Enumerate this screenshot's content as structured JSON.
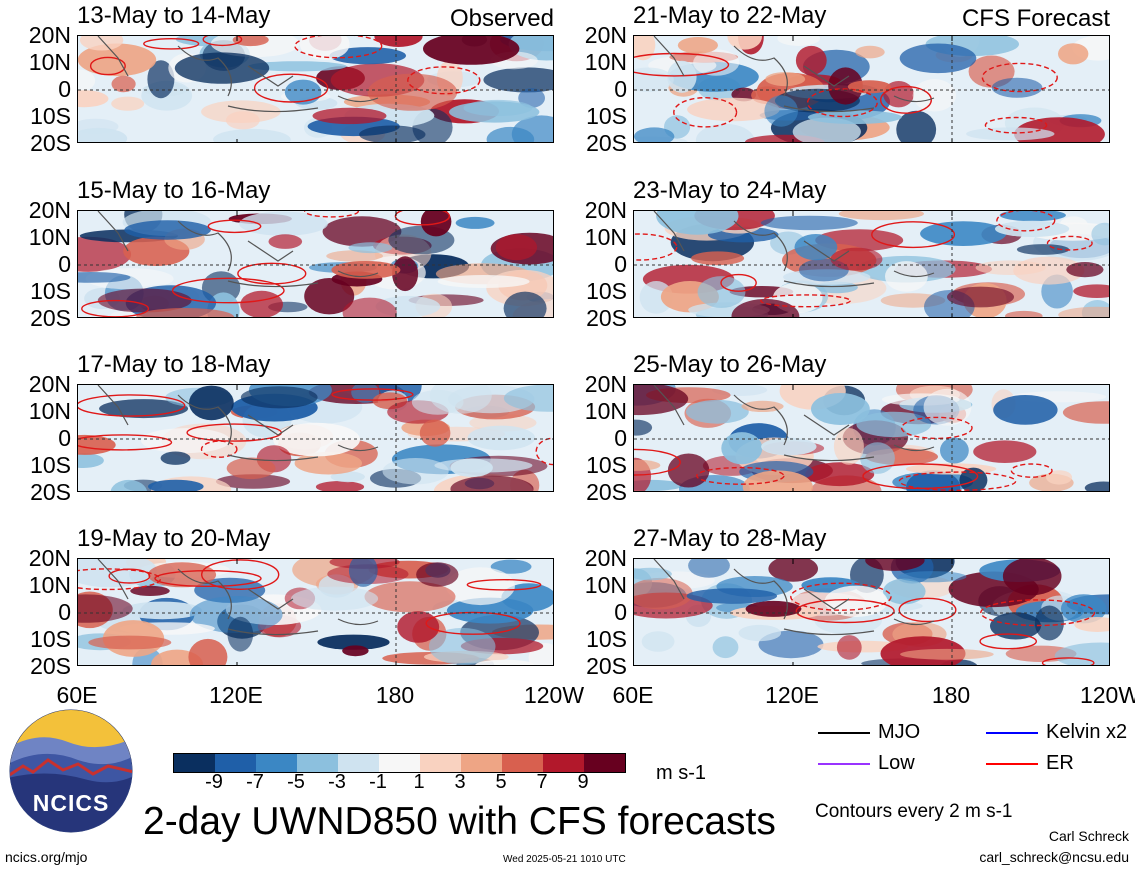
{
  "chart_data": {
    "type": "heatmap",
    "title": "2-day UWND850 with CFS forecasts",
    "units": "m s-1",
    "contour_note": "Contours every 2 m s-1",
    "x_ticks": [
      "60E",
      "120E",
      "180",
      "120W"
    ],
    "y_ticks": [
      "20N",
      "10N",
      "0",
      "10S",
      "20S"
    ],
    "x_range": [
      60,
      240
    ],
    "y_range": [
      -20,
      20
    ],
    "colorbar": {
      "labels": [
        "-9",
        "-7",
        "-5",
        "-3",
        "-1",
        "1",
        "3",
        "5",
        "7",
        "9"
      ],
      "colors": [
        "#0a2f5f",
        "#1f5fa8",
        "#3b87c4",
        "#8cc0de",
        "#cfe3f0",
        "#f7f7f7",
        "#f9d2c0",
        "#eea585",
        "#d8604f",
        "#b2182b",
        "#67001f"
      ]
    },
    "panels": [
      {
        "title": "13-May to 14-May",
        "tag": "Observed"
      },
      {
        "title": "21-May to 22-May",
        "tag": "CFS Forecast"
      },
      {
        "title": "15-May to 16-May",
        "tag": ""
      },
      {
        "title": "23-May to 24-May",
        "tag": ""
      },
      {
        "title": "17-May to 18-May",
        "tag": ""
      },
      {
        "title": "25-May to 26-May",
        "tag": ""
      },
      {
        "title": "19-May to 20-May",
        "tag": ""
      },
      {
        "title": "27-May to 28-May",
        "tag": ""
      }
    ],
    "legend": [
      {
        "label": "MJO",
        "color": "#000000"
      },
      {
        "label": "Kelvin x2",
        "color": "#0000ff"
      },
      {
        "label": "Low",
        "color": "#9933ff"
      },
      {
        "label": "ER",
        "color": "#ff0000"
      }
    ]
  },
  "footer": {
    "logo_text": "NCICS",
    "site": "ncics.org/mjo",
    "timestamp": "Wed 2025-05-21 1010 UTC",
    "author": "Carl Schreck",
    "email": "carl_schreck@ncsu.edu"
  }
}
